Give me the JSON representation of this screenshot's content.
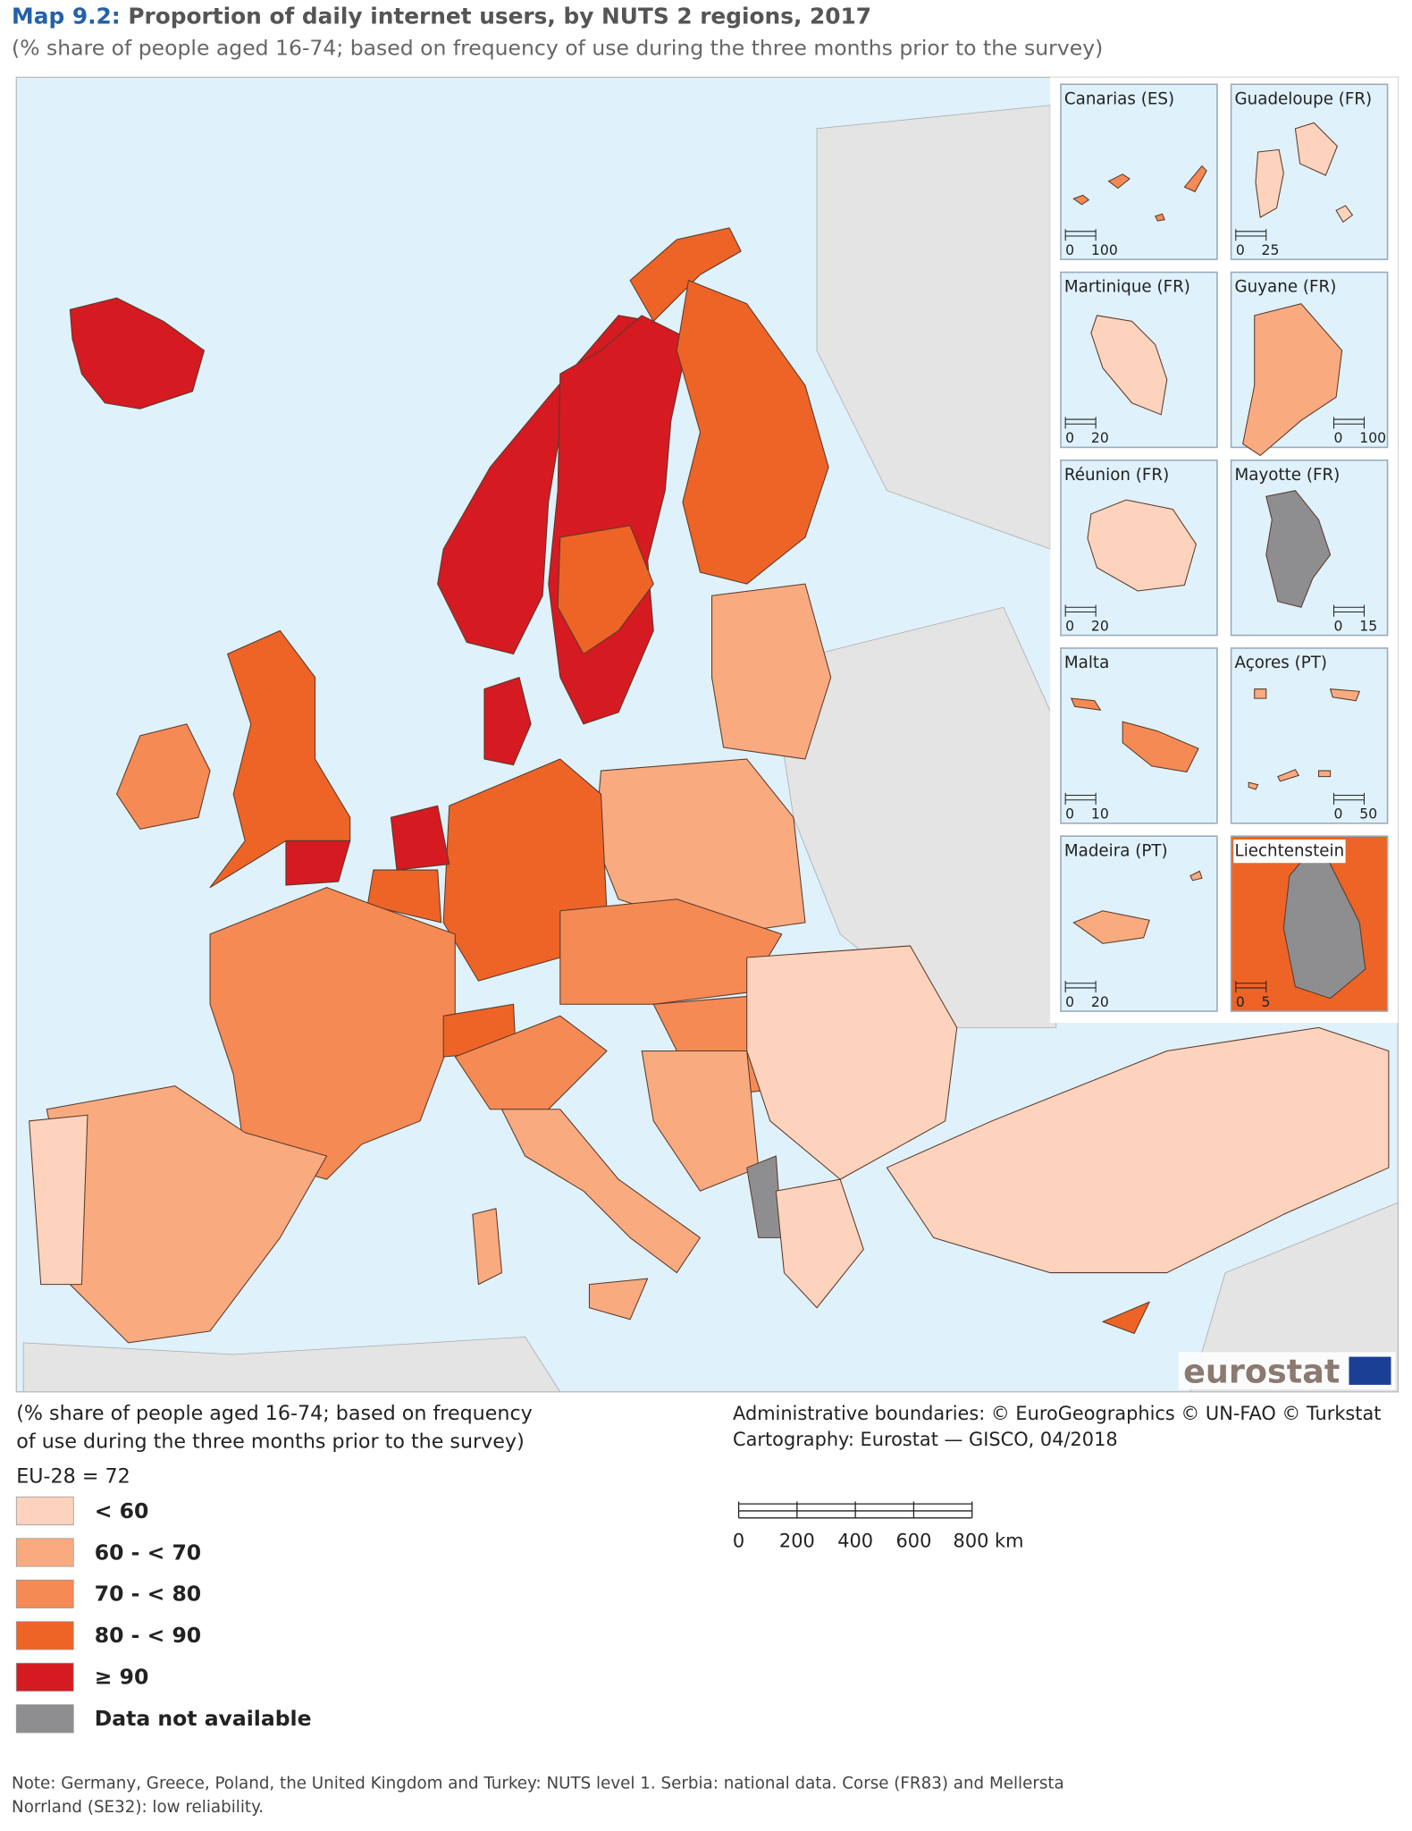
{
  "title": {
    "label": "Map 9.2:",
    "text": "Proportion of daily internet users, by NUTS 2 regions, 2017"
  },
  "subtitle": "(% share of people aged 16-74; based on frequency of use during the three months prior to the survey)",
  "insets": [
    {
      "name": "Canarias (ES)",
      "scale": [
        "0",
        "100"
      ]
    },
    {
      "name": "Guadeloupe (FR)",
      "scale": [
        "0",
        "25"
      ]
    },
    {
      "name": "Martinique (FR)",
      "scale": [
        "0",
        "20"
      ]
    },
    {
      "name": "Guyane (FR)",
      "scale": [
        "0",
        "100"
      ]
    },
    {
      "name": "Réunion (FR)",
      "scale": [
        "0",
        "20"
      ]
    },
    {
      "name": "Mayotte (FR)",
      "scale": [
        "0",
        "15"
      ]
    },
    {
      "name": "Malta",
      "scale": [
        "0",
        "10"
      ]
    },
    {
      "name": "Açores (PT)",
      "scale": [
        "0",
        "50"
      ]
    },
    {
      "name": "Madeira (PT)",
      "scale": [
        "0",
        "20"
      ]
    },
    {
      "name": "Liechtenstein",
      "scale": [
        "0",
        "5"
      ]
    }
  ],
  "logo": "eurostat",
  "legend": {
    "title": [
      "(% share of people aged 16-74; based on frequency",
      "of use during the three months prior to the survey)"
    ],
    "eu": "EU-28 = 72",
    "classes": [
      {
        "label": "< 60",
        "color": "#fdd3bd"
      },
      {
        "label": "60 - < 70",
        "color": "#f9aa7f"
      },
      {
        "label": "70 - < 80",
        "color": "#f58a55"
      },
      {
        "label": "80 - < 90",
        "color": "#ee6426"
      },
      {
        "label": "≥ 90",
        "color": "#d51a21"
      },
      {
        "label": "Data not available",
        "color": "#8e8e90"
      }
    ]
  },
  "credits": [
    "Administrative boundaries: © EuroGeographics © UN-FAO © Turkstat",
    "Cartography: Eurostat — GISCO, 04/2018"
  ],
  "scale_bar": [
    "0",
    "200",
    "400",
    "600",
    "800 km"
  ],
  "note": [
    "Note: Germany, Greece, Poland, the United Kingdom and Turkey: NUTS level 1. Serbia: national data. Corse (FR83) and Mellersta",
    "Norrland (SE32): low reliability."
  ]
}
